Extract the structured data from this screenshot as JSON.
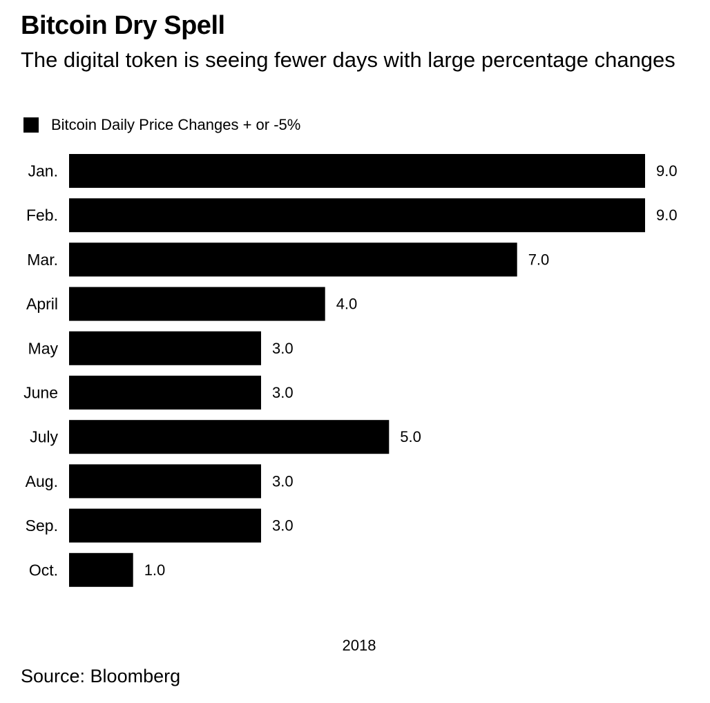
{
  "chart_data": {
    "type": "bar",
    "orientation": "horizontal",
    "title": "Bitcoin Dry Spell",
    "subtitle": "The digital token is seeing fewer days with large percentage changes",
    "categories": [
      "Jan.",
      "Feb.",
      "Mar.",
      "April",
      "May",
      "June",
      "July",
      "Aug.",
      "Sep.",
      "Oct."
    ],
    "series": [
      {
        "name": "Bitcoin Daily Price Changes + or -5%",
        "values": [
          9.0,
          9.0,
          7.0,
          4.0,
          3.0,
          3.0,
          5.0,
          3.0,
          3.0,
          1.0
        ],
        "value_labels": [
          "9.0",
          "9.0",
          "7.0",
          "4.0",
          "3.0",
          "3.0",
          "5.0",
          "3.0",
          "3.0",
          "1.0"
        ],
        "color": "#000000"
      }
    ],
    "xlabel": "2018",
    "ylabel": "",
    "xlim": [
      0,
      9
    ],
    "grid": false,
    "legend_position": "top-left"
  },
  "footer": {
    "source": "Source: Bloomberg"
  }
}
